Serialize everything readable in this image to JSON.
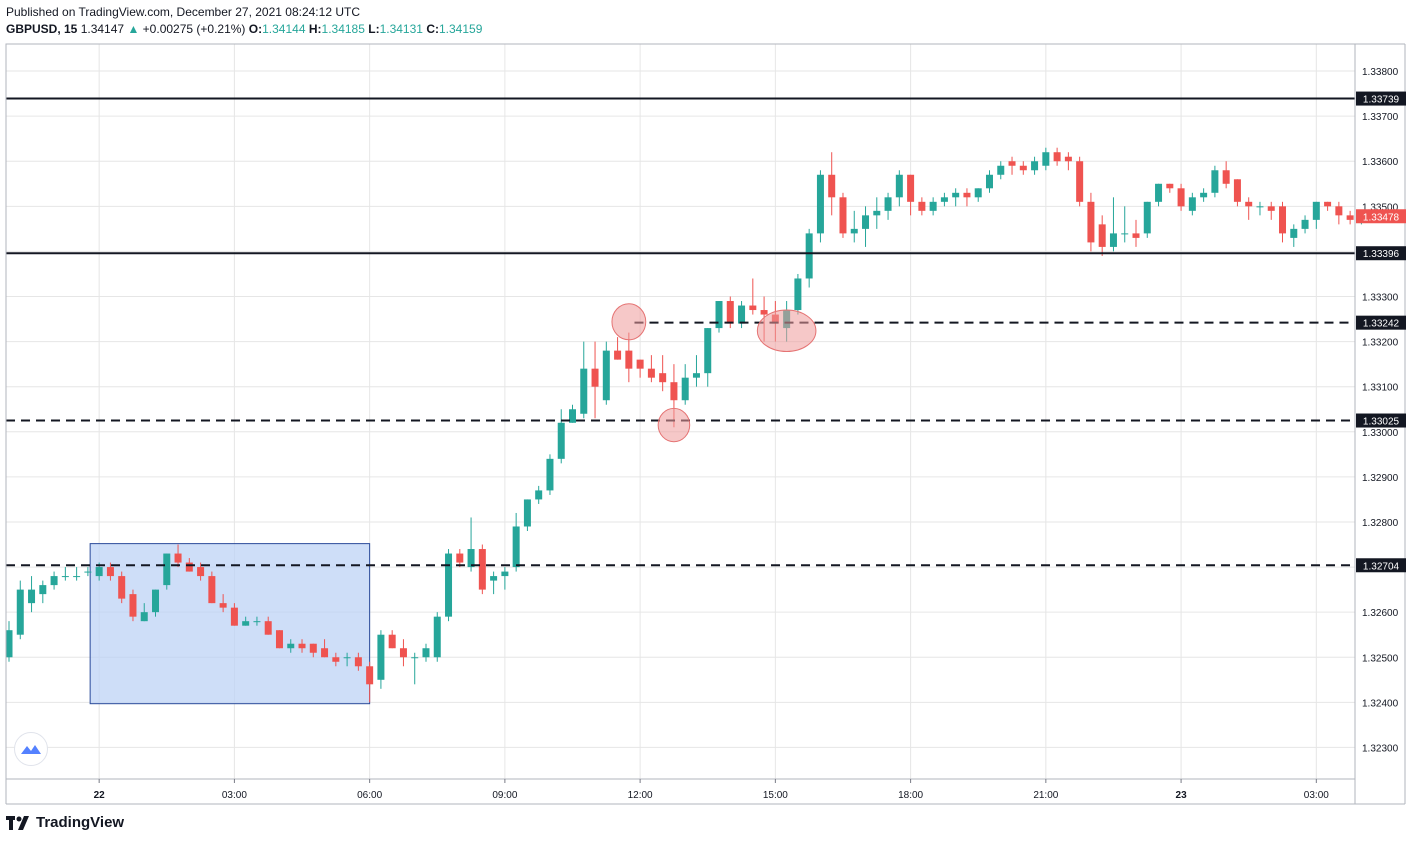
{
  "header": {
    "published": "Published on TradingView.com, December 27, 2021 08:24:12 UTC",
    "symbol": "GBPUSD, 15",
    "last": "1.34147",
    "change": "+0.00275 (+0.21%)",
    "o_label": "O:",
    "o": "1.34144",
    "h_label": "H:",
    "h": "1.34185",
    "l_label": "L:",
    "l": "1.34131",
    "c_label": "C:",
    "c": "1.34159"
  },
  "footer": {
    "brand": "TradingView"
  },
  "colors": {
    "up": "#26a69a",
    "down": "#ef5350",
    "grid": "#e6e6e6",
    "zone": "#b9d0f5",
    "circle": "#ef9a9a"
  },
  "chart_data": {
    "type": "candlestick",
    "title": "",
    "y_range": [
      1.3223,
      1.3386
    ],
    "y_ticks": [
      "1.33800",
      "1.33700",
      "1.33600",
      "1.33500",
      "1.33400",
      "1.33300",
      "1.33200",
      "1.33100",
      "1.33000",
      "1.32900",
      "1.32800",
      "1.32700",
      "1.32600",
      "1.32500",
      "1.32400",
      "1.32300"
    ],
    "x_ticks": [
      {
        "label": "22",
        "bar": 8,
        "bold": true
      },
      {
        "label": "03:00",
        "bar": 20
      },
      {
        "label": "06:00",
        "bar": 32
      },
      {
        "label": "09:00",
        "bar": 44
      },
      {
        "label": "12:00",
        "bar": 56
      },
      {
        "label": "15:00",
        "bar": 68
      },
      {
        "label": "18:00",
        "bar": 80
      },
      {
        "label": "21:00",
        "bar": 92
      },
      {
        "label": "23",
        "bar": 104,
        "bold": true
      },
      {
        "label": "03:00",
        "bar": 116
      }
    ],
    "bar_count": 125,
    "candles": [
      [
        1.325,
        1.3258,
        1.3249,
        1.3256
      ],
      [
        1.3255,
        1.3267,
        1.3254,
        1.3265
      ],
      [
        1.3262,
        1.3268,
        1.326,
        1.3265
      ],
      [
        1.3264,
        1.3267,
        1.3262,
        1.3266
      ],
      [
        1.3266,
        1.3269,
        1.3265,
        1.3268
      ],
      [
        1.3268,
        1.327,
        1.3267,
        1.3268
      ],
      [
        1.3268,
        1.327,
        1.3267,
        1.3268
      ],
      [
        1.3269,
        1.327,
        1.3268,
        1.3269
      ],
      [
        1.3268,
        1.3271,
        1.3267,
        1.327
      ],
      [
        1.327,
        1.3271,
        1.3267,
        1.3268
      ],
      [
        1.3268,
        1.3269,
        1.3262,
        1.3263
      ],
      [
        1.3264,
        1.3265,
        1.3258,
        1.3259
      ],
      [
        1.3258,
        1.3262,
        1.3258,
        1.326
      ],
      [
        1.326,
        1.3265,
        1.3259,
        1.3265
      ],
      [
        1.3266,
        1.3273,
        1.3265,
        1.3273
      ],
      [
        1.3273,
        1.3275,
        1.327,
        1.3271
      ],
      [
        1.3271,
        1.3272,
        1.3269,
        1.3269
      ],
      [
        1.327,
        1.3271,
        1.3267,
        1.3268
      ],
      [
        1.3268,
        1.3269,
        1.3262,
        1.3262
      ],
      [
        1.3262,
        1.3264,
        1.326,
        1.3261
      ],
      [
        1.3261,
        1.3262,
        1.3257,
        1.3257
      ],
      [
        1.3257,
        1.3259,
        1.3257,
        1.3258
      ],
      [
        1.3258,
        1.3259,
        1.3257,
        1.3258
      ],
      [
        1.3258,
        1.3259,
        1.3255,
        1.3255
      ],
      [
        1.3256,
        1.3256,
        1.3252,
        1.3252
      ],
      [
        1.3252,
        1.3254,
        1.3251,
        1.3253
      ],
      [
        1.3253,
        1.3254,
        1.3251,
        1.3252
      ],
      [
        1.3253,
        1.3253,
        1.325,
        1.3251
      ],
      [
        1.3252,
        1.3254,
        1.325,
        1.325
      ],
      [
        1.325,
        1.3251,
        1.3248,
        1.3249
      ],
      [
        1.325,
        1.3251,
        1.3248,
        1.325
      ],
      [
        1.325,
        1.3251,
        1.3247,
        1.3248
      ],
      [
        1.3248,
        1.3249,
        1.324,
        1.3244
      ],
      [
        1.3245,
        1.3256,
        1.3243,
        1.3255
      ],
      [
        1.3255,
        1.3256,
        1.3252,
        1.3252
      ],
      [
        1.3252,
        1.3254,
        1.3248,
        1.325
      ],
      [
        1.325,
        1.3251,
        1.3244,
        1.325
      ],
      [
        1.325,
        1.3253,
        1.3249,
        1.3252
      ],
      [
        1.325,
        1.326,
        1.3249,
        1.3259
      ],
      [
        1.3259,
        1.3274,
        1.3258,
        1.3273
      ],
      [
        1.3273,
        1.3274,
        1.327,
        1.3271
      ],
      [
        1.327,
        1.3281,
        1.3269,
        1.3274
      ],
      [
        1.3274,
        1.3275,
        1.3264,
        1.3265
      ],
      [
        1.3267,
        1.3269,
        1.3264,
        1.3268
      ],
      [
        1.3268,
        1.327,
        1.3265,
        1.3269
      ],
      [
        1.327,
        1.3282,
        1.3269,
        1.3279
      ],
      [
        1.3279,
        1.3285,
        1.3278,
        1.3285
      ],
      [
        1.3285,
        1.3288,
        1.3284,
        1.3287
      ],
      [
        1.3287,
        1.3295,
        1.3286,
        1.3294
      ],
      [
        1.3294,
        1.3305,
        1.3293,
        1.3302
      ],
      [
        1.3302,
        1.3306,
        1.3302,
        1.3305
      ],
      [
        1.3304,
        1.332,
        1.3303,
        1.3314
      ],
      [
        1.3314,
        1.332,
        1.3303,
        1.331
      ],
      [
        1.3307,
        1.332,
        1.3306,
        1.3318
      ],
      [
        1.3318,
        1.3321,
        1.3316,
        1.3316
      ],
      [
        1.3318,
        1.3322,
        1.3311,
        1.3314
      ],
      [
        1.3316,
        1.3316,
        1.3312,
        1.3314
      ],
      [
        1.3314,
        1.3317,
        1.3311,
        1.3312
      ],
      [
        1.3313,
        1.3317,
        1.3309,
        1.3311
      ],
      [
        1.3311,
        1.3315,
        1.3301,
        1.3307
      ],
      [
        1.3307,
        1.3315,
        1.3306,
        1.3312
      ],
      [
        1.3312,
        1.3317,
        1.331,
        1.3313
      ],
      [
        1.3313,
        1.3323,
        1.331,
        1.3323
      ],
      [
        1.3323,
        1.3329,
        1.3322,
        1.3329
      ],
      [
        1.3329,
        1.333,
        1.3323,
        1.3324
      ],
      [
        1.3324,
        1.3329,
        1.3323,
        1.3328
      ],
      [
        1.3328,
        1.3334,
        1.3326,
        1.3327
      ],
      [
        1.3327,
        1.333,
        1.332,
        1.3326
      ],
      [
        1.3326,
        1.3329,
        1.332,
        1.3324
      ],
      [
        1.3323,
        1.3329,
        1.332,
        1.3327
      ],
      [
        1.3327,
        1.3335,
        1.3326,
        1.3334
      ],
      [
        1.3334,
        1.3345,
        1.3332,
        1.3344
      ],
      [
        1.3344,
        1.3358,
        1.3342,
        1.3357
      ],
      [
        1.3357,
        1.3362,
        1.3348,
        1.3352
      ],
      [
        1.3352,
        1.3353,
        1.3343,
        1.3344
      ],
      [
        1.3344,
        1.3349,
        1.3342,
        1.3345
      ],
      [
        1.3345,
        1.335,
        1.3341,
        1.3348
      ],
      [
        1.3348,
        1.3352,
        1.3345,
        1.3349
      ],
      [
        1.3349,
        1.3353,
        1.3347,
        1.3352
      ],
      [
        1.3352,
        1.3358,
        1.335,
        1.3357
      ],
      [
        1.3357,
        1.3357,
        1.3348,
        1.3351
      ],
      [
        1.3351,
        1.3352,
        1.3348,
        1.3349
      ],
      [
        1.3349,
        1.3352,
        1.3348,
        1.3351
      ],
      [
        1.3351,
        1.3353,
        1.335,
        1.3352
      ],
      [
        1.3352,
        1.3354,
        1.335,
        1.3353
      ],
      [
        1.3353,
        1.3354,
        1.335,
        1.3352
      ],
      [
        1.3352,
        1.3354,
        1.3351,
        1.3354
      ],
      [
        1.3354,
        1.3358,
        1.3353,
        1.3357
      ],
      [
        1.3357,
        1.336,
        1.3356,
        1.3359
      ],
      [
        1.336,
        1.3361,
        1.3357,
        1.3359
      ],
      [
        1.3359,
        1.336,
        1.3357,
        1.3358
      ],
      [
        1.3358,
        1.3361,
        1.3357,
        1.336
      ],
      [
        1.3359,
        1.3363,
        1.3358,
        1.3362
      ],
      [
        1.3362,
        1.3363,
        1.3359,
        1.336
      ],
      [
        1.3361,
        1.3362,
        1.3358,
        1.336
      ],
      [
        1.336,
        1.3361,
        1.335,
        1.3351
      ],
      [
        1.3351,
        1.3353,
        1.334,
        1.3342
      ],
      [
        1.3346,
        1.3348,
        1.3339,
        1.3341
      ],
      [
        1.3341,
        1.3352,
        1.334,
        1.3344
      ],
      [
        1.3344,
        1.335,
        1.3342,
        1.3344
      ],
      [
        1.3344,
        1.3347,
        1.3341,
        1.3343
      ],
      [
        1.3344,
        1.3351,
        1.3343,
        1.3351
      ],
      [
        1.3351,
        1.3355,
        1.335,
        1.3355
      ],
      [
        1.3355,
        1.3355,
        1.3353,
        1.3354
      ],
      [
        1.3354,
        1.3355,
        1.3349,
        1.335
      ],
      [
        1.3349,
        1.3353,
        1.3348,
        1.3352
      ],
      [
        1.3352,
        1.3354,
        1.3351,
        1.3353
      ],
      [
        1.3353,
        1.3359,
        1.3352,
        1.3358
      ],
      [
        1.3358,
        1.336,
        1.3354,
        1.3355
      ],
      [
        1.3356,
        1.3356,
        1.335,
        1.3351
      ],
      [
        1.3351,
        1.3352,
        1.3347,
        1.335
      ],
      [
        1.335,
        1.3351,
        1.3348,
        1.335
      ],
      [
        1.335,
        1.3351,
        1.3347,
        1.3349
      ],
      [
        1.335,
        1.3351,
        1.3342,
        1.3344
      ],
      [
        1.3343,
        1.3346,
        1.3341,
        1.3345
      ],
      [
        1.3345,
        1.3348,
        1.3344,
        1.3347
      ],
      [
        1.3347,
        1.3351,
        1.3345,
        1.3351
      ],
      [
        1.3351,
        1.3351,
        1.3349,
        1.335
      ],
      [
        1.335,
        1.3351,
        1.3346,
        1.3348
      ],
      [
        1.3348,
        1.3349,
        1.3346,
        1.3347
      ],
      [
        1.3347,
        1.3349,
        1.3346,
        1.3348
      ],
      [
        1.3348,
        1.3349,
        1.3347,
        1.3348
      ]
    ],
    "horizontal_lines": [
      {
        "price": 1.33739,
        "label": "1.33739",
        "style": "solid"
      },
      {
        "price": 1.33396,
        "label": "1.33396",
        "style": "solid"
      },
      {
        "price": 1.33242,
        "label": "1.33242",
        "style": "dashed",
        "from_bar": 56
      },
      {
        "price": 1.33025,
        "label": "1.33025",
        "style": "dashed"
      },
      {
        "price": 1.32704,
        "label": "1.32704",
        "style": "dashed"
      }
    ],
    "current_price_label": "1.33478",
    "current_price": 1.33478,
    "zone": {
      "from_bar": 7,
      "to_bar": 32,
      "top": 1.32752,
      "bottom": 1.32397
    },
    "circles": [
      {
        "bar": 55,
        "price": 1.33244,
        "rx_bars": 1.5,
        "ry_price": 0.0004
      },
      {
        "bar": 59,
        "price": 1.33015,
        "rx_bars": 1.4,
        "ry_price": 0.00037
      },
      {
        "bar": 69,
        "price": 1.33224,
        "rx_bars": 2.6,
        "ry_price": 0.00046
      }
    ]
  }
}
